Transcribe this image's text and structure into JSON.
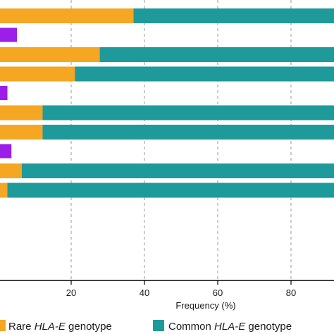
{
  "chart_data": {
    "type": "bar",
    "orientation": "horizontal",
    "stacked": true,
    "xlabel": "Frequency (%)",
    "xlim": [
      0,
      85
    ],
    "xticks": [
      20,
      40,
      60,
      80
    ],
    "grid": "vertical dashed",
    "legend_position": "bottom",
    "rows": [
      {
        "rare": 37.0,
        "common": 63.0
      },
      {
        "third": 5.2
      },
      {
        "rare": 27.8,
        "common": 72.2
      },
      {
        "rare": 21.0,
        "common": 79.0
      },
      {
        "third": 2.6
      },
      {
        "rare": 12.2,
        "common": 87.8
      },
      {
        "rare": 12.2,
        "common": 87.8
      },
      {
        "third": 3.7
      },
      {
        "rare": 6.5,
        "common": 93.5
      },
      {
        "rare": 2.6,
        "common": 97.4
      }
    ],
    "series": [
      {
        "key": "rare",
        "name_prefix": "Rare ",
        "name_italic": "HLA-E",
        "name_suffix": " genotype",
        "color": "#F5A623"
      },
      {
        "key": "common",
        "name_prefix": "Common ",
        "name_italic": "HLA-E",
        "name_suffix": " genotype",
        "color": "#1E9A9A"
      },
      {
        "key": "third",
        "name_prefix": "",
        "name_italic": "",
        "name_suffix": "",
        "color": "#9B1FE8"
      }
    ]
  }
}
